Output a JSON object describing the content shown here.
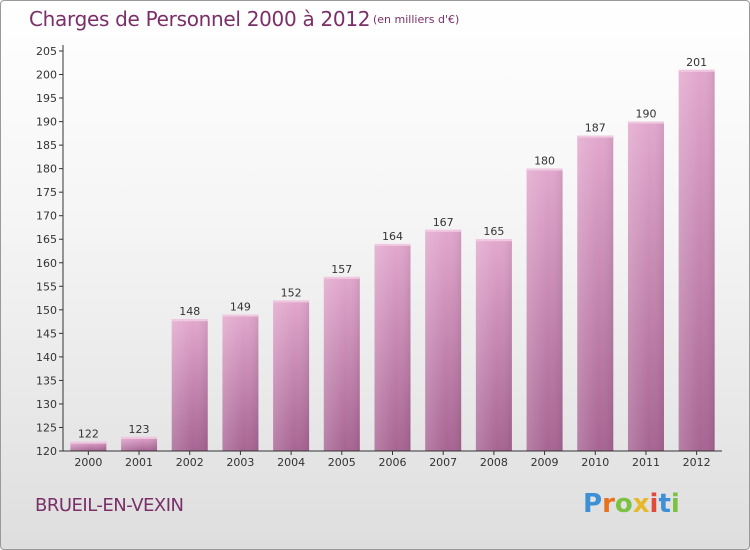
{
  "header": {
    "title": "Charges de Personnel 2000 à 2012",
    "subtitle": "(en milliers d'€)"
  },
  "footer": {
    "place": "BRUEIL-EN-VEXIN",
    "logo_text": "Proxiti"
  },
  "logo_colors": [
    "#3d8fd6",
    "#e8721c",
    "#7cc242",
    "#e6b92a",
    "#e04a3c",
    "#3d8fd6",
    "#7cc242"
  ],
  "colors": {
    "bar_light": "#e2a7cd",
    "bar_dark": "#a76493",
    "axis": "#333333",
    "grid": "#cfcfcf",
    "text": "#333333",
    "accent": "#7a2f68"
  },
  "chart_data": {
    "type": "bar",
    "title": "Charges de Personnel 2000 à 2012",
    "subtitle": "(en milliers d'€)",
    "categories": [
      "2000",
      "2001",
      "2002",
      "2003",
      "2004",
      "2005",
      "2006",
      "2007",
      "2008",
      "2009",
      "2010",
      "2011",
      "2012"
    ],
    "values": [
      122,
      123,
      148,
      149,
      152,
      157,
      164,
      167,
      165,
      180,
      187,
      190,
      201
    ],
    "ylim": [
      120,
      205
    ],
    "yticks": [
      120,
      125,
      130,
      135,
      140,
      145,
      150,
      155,
      160,
      165,
      170,
      175,
      180,
      185,
      190,
      195,
      200,
      205
    ],
    "xlabel": "",
    "ylabel": "",
    "data_labels": true,
    "grid": false,
    "legend": "none"
  }
}
